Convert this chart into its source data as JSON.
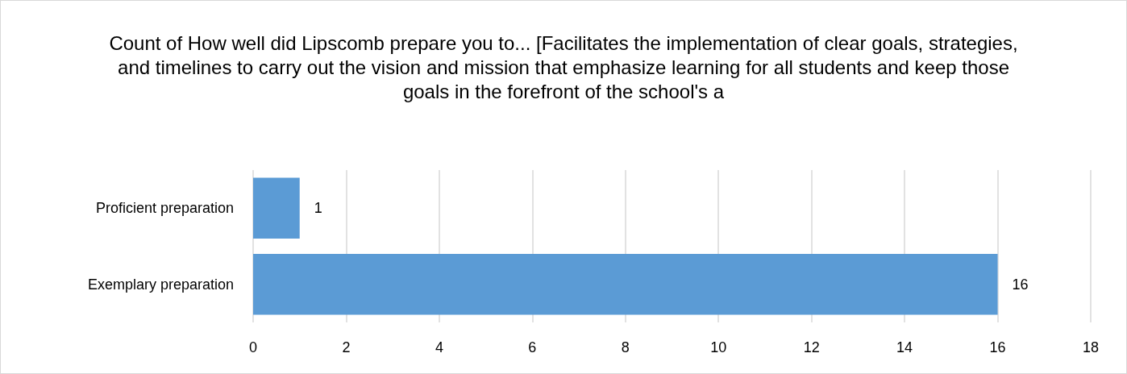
{
  "chart_data": {
    "type": "bar",
    "orientation": "horizontal",
    "title": "Count of How well did Lipscomb prepare you to... [Facilitates the implementation of clear goals, strategies, and timelines to carry out the vision and mission that emphasize learning for all students and keep those goals in the forefront of the school's a",
    "categories": [
      "Proficient preparation",
      "Exemplary preparation"
    ],
    "values": [
      1,
      16
    ],
    "color": "#5b9bd5",
    "xlim": [
      0,
      18
    ],
    "xticks": [
      0,
      2,
      4,
      6,
      8,
      10,
      12,
      14,
      16,
      18
    ],
    "grid": "x",
    "data_labels": true
  }
}
